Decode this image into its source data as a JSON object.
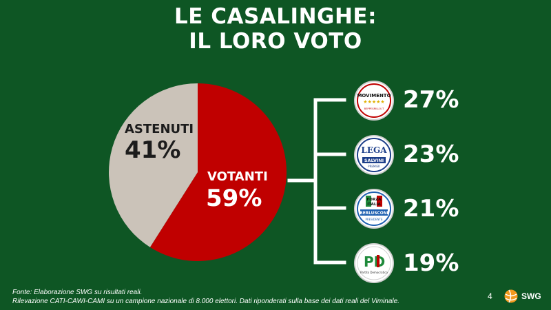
{
  "title": {
    "line1": "LE CASALINGHE:",
    "line2": "IL LORO VOTO"
  },
  "chart_data": {
    "type": "pie",
    "title": "LE CASALINGHE: IL LORO VOTO",
    "categories": [
      "VOTANTI",
      "ASTENUTI"
    ],
    "values": [
      59,
      41
    ],
    "labels": [
      "59%",
      "41%"
    ],
    "colors": [
      "#c00000",
      "#cbc3b9"
    ],
    "breakdown": {
      "type": "bar",
      "parent": "VOTANTI",
      "categories": [
        "MoVimento 5 Stelle",
        "Lega - Salvini Premier",
        "Forza Italia - Berlusconi Presidente",
        "PD - Partito Democratico"
      ],
      "values": [
        27,
        23,
        21,
        19
      ],
      "labels": [
        "27%",
        "23%",
        "21%",
        "19%"
      ]
    }
  },
  "logos": {
    "m5s": {
      "line1": "MOVIMENTO",
      "stars": "★★★★★",
      "line2": "BEPPEGRILLO.IT"
    },
    "lega": {
      "main": "LEGA",
      "salvini": "SALVINI",
      "premier": "PREMIER"
    },
    "fi": {
      "line1": "FORZA",
      "line2": "ITALIA",
      "name": "BERLUSCONI",
      "sub": "PRESIDENTE"
    },
    "pd": {
      "main": "PD",
      "sub": "Partito Democratico"
    }
  },
  "footer": {
    "line1": "Fonte: Elaborazione SWG su risultati reali.",
    "line2": "Rilevazione CATI-CAWI-CAMI su un campione nazionale di 8.000 elettori. Dati riponderati sulla base dei dati reali del Viminale."
  },
  "page_number": "4",
  "brand": {
    "name": "SWG",
    "icon": "swg-ball-icon"
  }
}
